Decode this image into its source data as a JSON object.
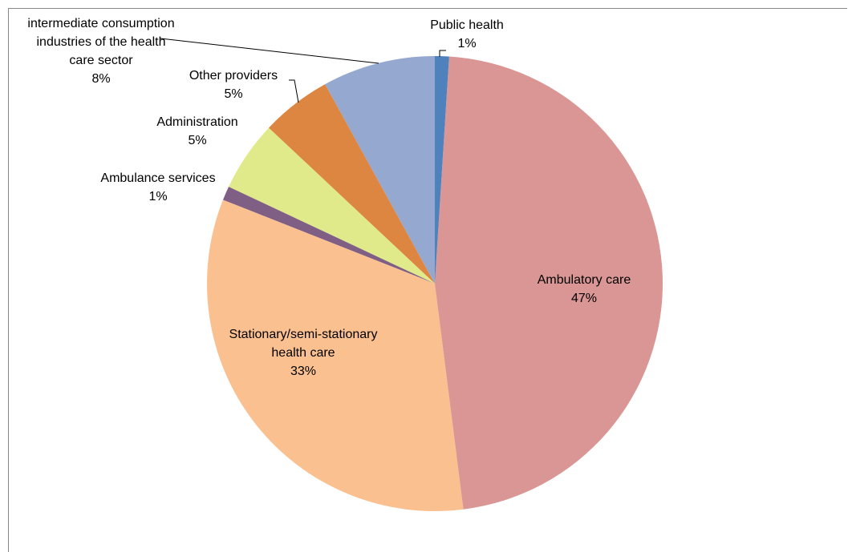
{
  "chart_data": {
    "type": "pie",
    "categories": [
      "Public health",
      "Ambulatory care",
      "Stationary/semi-stationary health care",
      "Ambulance services",
      "Administration",
      "Other providers",
      "intermediate consumption industries of the health care sector"
    ],
    "values": [
      1,
      47,
      33,
      1,
      5,
      5,
      8
    ],
    "value_labels": [
      "1%",
      "47%",
      "33%",
      "1%",
      "5%",
      "5%",
      "8%"
    ],
    "colors": [
      "#4f81bd",
      "#d99694",
      "#fac090",
      "#7f6084",
      "#e1ea8a",
      "#dd8642",
      "#95a9d0"
    ]
  }
}
